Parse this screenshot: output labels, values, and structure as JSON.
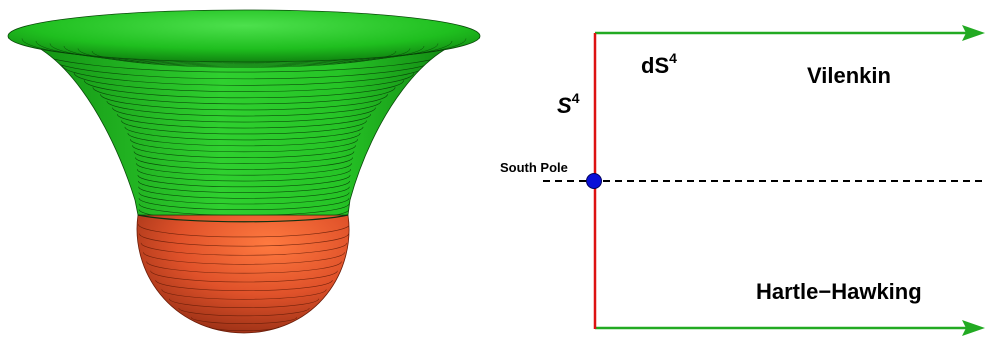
{
  "labels": {
    "ds4_base": "dS",
    "ds4_exp": "4",
    "s4_base": "S",
    "s4_exp": "4",
    "vilenkin": "Vilenkin",
    "south_pole": "South Pole",
    "hartle_hawking": "Hartle−Hawking"
  },
  "colors": {
    "green_surface": "#1fbf1f",
    "green_dark": "#0d7a0d",
    "orange_surface": "#e0522a",
    "orange_dark": "#a8341a",
    "axis_green": "#22aa22",
    "axis_red": "#dd1111",
    "pole_blue": "#0a10d8",
    "dashed_line": "#000000"
  },
  "icons": {
    "surface": "trumpet-surface-with-hemisphere",
    "pole": "filled-circle-marker",
    "arrows": "arrowhead-right"
  }
}
